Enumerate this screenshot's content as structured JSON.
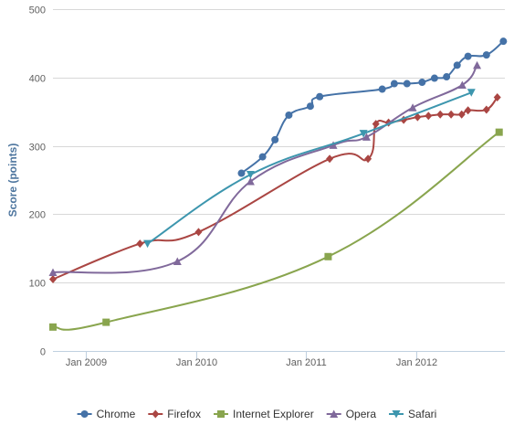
{
  "chart_data": {
    "type": "line",
    "title": "",
    "xlabel": "",
    "ylabel": "Score (points)",
    "ylim": [
      0,
      500
    ],
    "yticks": [
      0,
      100,
      200,
      300,
      400,
      500
    ],
    "xlim": [
      "2008-09-15",
      "2012-10-20"
    ],
    "xticks": [
      {
        "date": "2009-01-01",
        "label": "Jan 2009"
      },
      {
        "date": "2010-01-01",
        "label": "Jan 2010"
      },
      {
        "date": "2011-01-01",
        "label": "Jan 2011"
      },
      {
        "date": "2012-01-01",
        "label": "Jan 2012"
      }
    ],
    "grid": true,
    "legend_position": "bottom",
    "series": [
      {
        "name": "Chrome",
        "color": "#4572a7",
        "marker": "circle",
        "points": [
          [
            "2010-06-01",
            260
          ],
          [
            "2010-08-10",
            284
          ],
          [
            "2010-09-20",
            309
          ],
          [
            "2010-11-05",
            345
          ],
          [
            "2011-01-15",
            358
          ],
          [
            "2011-02-15",
            372
          ],
          [
            "2011-09-10",
            383
          ],
          [
            "2011-10-20",
            391
          ],
          [
            "2011-12-01",
            391
          ],
          [
            "2012-01-20",
            393
          ],
          [
            "2012-03-01",
            399
          ],
          [
            "2012-04-10",
            401
          ],
          [
            "2012-05-15",
            418
          ],
          [
            "2012-06-20",
            431
          ],
          [
            "2012-08-20",
            433
          ],
          [
            "2012-10-15",
            453
          ]
        ]
      },
      {
        "name": "Firefox",
        "color": "#aa4643",
        "marker": "diamond",
        "points": [
          [
            "2008-09-15",
            105
          ],
          [
            "2009-06-30",
            157
          ],
          [
            "2010-01-10",
            174
          ],
          [
            "2011-03-20",
            281
          ],
          [
            "2011-07-25",
            281
          ],
          [
            "2011-08-20",
            332
          ],
          [
            "2011-10-01",
            334
          ],
          [
            "2011-11-20",
            338
          ],
          [
            "2012-01-05",
            342
          ],
          [
            "2012-02-10",
            344
          ],
          [
            "2012-03-20",
            346
          ],
          [
            "2012-04-25",
            346
          ],
          [
            "2012-05-30",
            346
          ],
          [
            "2012-06-20",
            352
          ],
          [
            "2012-08-20",
            353
          ],
          [
            "2012-09-25",
            371
          ]
        ]
      },
      {
        "name": "Internet Explorer",
        "color": "#89a54e",
        "marker": "square",
        "points": [
          [
            "2008-09-15",
            35
          ],
          [
            "2009-03-10",
            42
          ],
          [
            "2011-03-15",
            138
          ],
          [
            "2012-10-01",
            320
          ]
        ]
      },
      {
        "name": "Opera",
        "color": "#80699b",
        "marker": "triangle",
        "points": [
          [
            "2008-09-15",
            115
          ],
          [
            "2009-11-01",
            131
          ],
          [
            "2010-07-01",
            248
          ],
          [
            "2011-04-01",
            301
          ],
          [
            "2011-07-20",
            313
          ],
          [
            "2011-12-20",
            356
          ],
          [
            "2012-06-01",
            389
          ],
          [
            "2012-07-20",
            418
          ]
        ]
      },
      {
        "name": "Safari",
        "color": "#3d96ae",
        "marker": "triangle-down",
        "points": [
          [
            "2009-07-25",
            157
          ],
          [
            "2010-07-01",
            258
          ],
          [
            "2011-07-10",
            318
          ],
          [
            "2012-07-01",
            378
          ]
        ]
      }
    ]
  }
}
